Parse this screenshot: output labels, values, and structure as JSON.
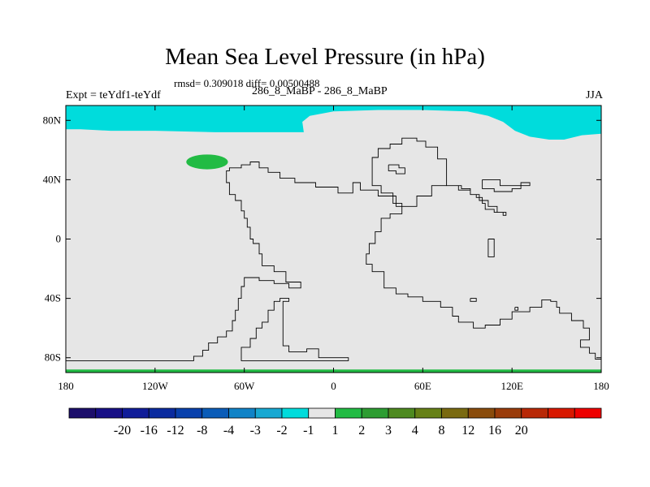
{
  "chart_data": {
    "type": "heatmap",
    "title": "Mean Sea Level Pressure (in hPa)",
    "stats_line": "rmsd= 0.309018 diff= 0.00500488",
    "left_string": "Expt = teYdf1-teYdf",
    "center_string": "286_8_MaBP - 286_8_MaBP",
    "right_string": "JJA",
    "x_range": [
      -180,
      180
    ],
    "y_range": [
      -90,
      90
    ],
    "x_ticks": [
      {
        "value": -180,
        "label": "180"
      },
      {
        "value": -120,
        "label": "120W"
      },
      {
        "value": -60,
        "label": "60W"
      },
      {
        "value": 0,
        "label": "0"
      },
      {
        "value": 60,
        "label": "60E"
      },
      {
        "value": 120,
        "label": "120E"
      },
      {
        "value": 180,
        "label": "180"
      }
    ],
    "y_ticks": [
      {
        "value": 80,
        "label": "80N"
      },
      {
        "value": 40,
        "label": "40N"
      },
      {
        "value": 0,
        "label": "0"
      },
      {
        "value": -40,
        "label": "40S"
      },
      {
        "value": -80,
        "label": "80S"
      }
    ],
    "background_bin": {
      "range": "-1 to 1",
      "color": "#e6e6e6"
    },
    "features": [
      {
        "name": "north-polar-low",
        "bin": "-2 to -1",
        "color": "#00dcdc",
        "boundary": [
          [
            -180,
            90
          ],
          [
            180,
            90
          ],
          [
            180,
            71
          ],
          [
            167,
            70
          ],
          [
            155,
            67
          ],
          [
            145,
            67
          ],
          [
            132,
            69
          ],
          [
            122,
            73
          ],
          [
            114,
            79
          ],
          [
            104,
            83
          ],
          [
            90,
            86
          ],
          [
            60,
            87
          ],
          [
            30,
            87
          ],
          [
            0,
            86
          ],
          [
            -16,
            83
          ],
          [
            -21,
            79
          ],
          [
            -20,
            72
          ],
          [
            -40,
            72
          ],
          [
            -80,
            72
          ],
          [
            -120,
            73
          ],
          [
            -150,
            73
          ],
          [
            -170,
            74
          ],
          [
            -180,
            74
          ]
        ]
      },
      {
        "name": "pacific-high",
        "bin": "1 to 2",
        "color": "#22bb44",
        "ellipse": {
          "cx": -85,
          "cy": 52,
          "rx": 14,
          "ry": 5
        }
      },
      {
        "name": "south-polar-high",
        "bin": "1 to 2",
        "color": "#22bb44",
        "boundary": [
          [
            -180,
            -88
          ],
          [
            180,
            -88
          ],
          [
            180,
            -90
          ],
          [
            -180,
            -90
          ]
        ]
      }
    ],
    "coastlines": [
      [
        [
          -180,
          -82
        ],
        [
          -94,
          -82
        ],
        [
          -94,
          -79
        ],
        [
          -88,
          -79
        ],
        [
          -88,
          -75
        ],
        [
          -84,
          -75
        ],
        [
          -84,
          -70
        ],
        [
          -78,
          -70
        ],
        [
          -78,
          -66
        ],
        [
          -72,
          -66
        ],
        [
          -72,
          -62
        ],
        [
          -68,
          -62
        ],
        [
          -68,
          -55
        ],
        [
          -66,
          -55
        ],
        [
          -66,
          -48
        ],
        [
          -64,
          -48
        ],
        [
          -64,
          -40
        ],
        [
          -62,
          -40
        ],
        [
          -62,
          -32
        ],
        [
          -60,
          -32
        ],
        [
          -60,
          -26
        ],
        [
          -50,
          -26
        ],
        [
          -50,
          -28
        ],
        [
          -40,
          -28
        ],
        [
          -40,
          -30
        ],
        [
          -30,
          -30
        ],
        [
          -30,
          -33
        ],
        [
          -22,
          -33
        ],
        [
          -22,
          -29
        ],
        [
          -32,
          -29
        ],
        [
          -32,
          -22
        ],
        [
          -40,
          -22
        ],
        [
          -40,
          -18
        ],
        [
          -48,
          -18
        ],
        [
          -48,
          -10
        ],
        [
          -50,
          -10
        ],
        [
          -50,
          -3
        ],
        [
          -54,
          -3
        ],
        [
          -54,
          0
        ],
        [
          -56,
          0
        ],
        [
          -56,
          8
        ],
        [
          -58,
          8
        ],
        [
          -58,
          14
        ],
        [
          -60,
          14
        ],
        [
          -60,
          19
        ],
        [
          -62,
          19
        ],
        [
          -62,
          26
        ],
        [
          -66,
          26
        ],
        [
          -66,
          30
        ],
        [
          -70,
          30
        ],
        [
          -70,
          38
        ],
        [
          -72,
          38
        ],
        [
          -72,
          46
        ],
        [
          -70,
          46
        ],
        [
          -70,
          48
        ],
        [
          -62,
          48
        ],
        [
          -62,
          50
        ],
        [
          -56,
          50
        ],
        [
          -56,
          52
        ],
        [
          -50,
          52
        ],
        [
          -50,
          48
        ],
        [
          -44,
          48
        ],
        [
          -44,
          45
        ],
        [
          -36,
          45
        ],
        [
          -36,
          41
        ],
        [
          -26,
          41
        ],
        [
          -26,
          38
        ],
        [
          -12,
          38
        ],
        [
          -12,
          35
        ],
        [
          3,
          35
        ],
        [
          3,
          31
        ],
        [
          13,
          31
        ],
        [
          13,
          38
        ],
        [
          18,
          38
        ],
        [
          18,
          33
        ],
        [
          30,
          33
        ],
        [
          30,
          29
        ],
        [
          42,
          29
        ],
        [
          42,
          22
        ],
        [
          56,
          22
        ],
        [
          56,
          29
        ],
        [
          66,
          29
        ],
        [
          66,
          36
        ],
        [
          76,
          36
        ],
        [
          76,
          54
        ],
        [
          70,
          54
        ],
        [
          70,
          62
        ],
        [
          62,
          62
        ],
        [
          62,
          66
        ],
        [
          56,
          66
        ],
        [
          56,
          68
        ],
        [
          46,
          68
        ],
        [
          46,
          64
        ],
        [
          38,
          64
        ],
        [
          38,
          61
        ],
        [
          30,
          61
        ],
        [
          30,
          55
        ],
        [
          26,
          55
        ],
        [
          26,
          36
        ],
        [
          32,
          36
        ],
        [
          32,
          31
        ],
        [
          40,
          31
        ],
        [
          40,
          24
        ],
        [
          46,
          24
        ],
        [
          46,
          17
        ],
        [
          38,
          17
        ],
        [
          38,
          14
        ],
        [
          32,
          14
        ],
        [
          32,
          5
        ],
        [
          28,
          5
        ],
        [
          28,
          -3
        ],
        [
          24,
          -3
        ],
        [
          24,
          -10
        ],
        [
          22,
          -10
        ],
        [
          22,
          -17
        ],
        [
          26,
          -17
        ],
        [
          26,
          -22
        ],
        [
          34,
          -22
        ],
        [
          34,
          -33
        ],
        [
          42,
          -33
        ],
        [
          42,
          -37
        ],
        [
          50,
          -37
        ],
        [
          50,
          -39
        ],
        [
          60,
          -39
        ],
        [
          60,
          -42
        ],
        [
          72,
          -42
        ],
        [
          72,
          -46
        ],
        [
          80,
          -46
        ],
        [
          80,
          -52
        ],
        [
          84,
          -52
        ],
        [
          84,
          -56
        ],
        [
          94,
          -56
        ],
        [
          94,
          -60
        ],
        [
          102,
          -60
        ],
        [
          102,
          -58
        ],
        [
          112,
          -58
        ],
        [
          112,
          -54
        ],
        [
          120,
          -54
        ],
        [
          120,
          -49
        ],
        [
          132,
          -49
        ],
        [
          132,
          -46
        ],
        [
          140,
          -46
        ],
        [
          140,
          -41
        ],
        [
          146,
          -41
        ],
        [
          146,
          -42
        ],
        [
          150,
          -42
        ],
        [
          150,
          -46
        ],
        [
          152,
          -46
        ],
        [
          152,
          -50
        ],
        [
          160,
          -50
        ],
        [
          160,
          -55
        ],
        [
          168,
          -55
        ],
        [
          168,
          -60
        ],
        [
          172,
          -60
        ],
        [
          172,
          -68
        ],
        [
          166,
          -68
        ],
        [
          166,
          -73
        ],
        [
          172,
          -73
        ],
        [
          172,
          -77
        ],
        [
          176,
          -77
        ],
        [
          176,
          -81
        ],
        [
          180,
          -81
        ]
      ],
      [
        [
          -62,
          -78
        ],
        [
          -62,
          -73
        ],
        [
          -56,
          -73
        ],
        [
          -56,
          -67
        ],
        [
          -52,
          -67
        ],
        [
          -52,
          -60
        ],
        [
          -48,
          -60
        ],
        [
          -48,
          -56
        ],
        [
          -44,
          -56
        ],
        [
          -44,
          -48
        ],
        [
          -40,
          -48
        ],
        [
          -40,
          -42
        ],
        [
          -36,
          -42
        ],
        [
          -36,
          -40
        ],
        [
          -30,
          -40
        ],
        [
          -30,
          -42
        ],
        [
          -34,
          -42
        ],
        [
          -34,
          -72
        ],
        [
          -30,
          -72
        ],
        [
          -30,
          -76
        ],
        [
          -18,
          -76
        ],
        [
          -18,
          -74
        ],
        [
          -10,
          -74
        ],
        [
          -10,
          -80
        ],
        [
          10,
          -80
        ],
        [
          10,
          -82
        ],
        [
          -62,
          -82
        ],
        [
          -62,
          -78
        ]
      ],
      [
        [
          76,
          36
        ],
        [
          84,
          36
        ],
        [
          84,
          33
        ],
        [
          92,
          33
        ],
        [
          92,
          30
        ],
        [
          96,
          30
        ],
        [
          96,
          28
        ],
        [
          100,
          28
        ],
        [
          100,
          24
        ],
        [
          102,
          24
        ],
        [
          102,
          20
        ],
        [
          108,
          20
        ],
        [
          108,
          18
        ],
        [
          114,
          18
        ],
        [
          114,
          16
        ],
        [
          116,
          16
        ],
        [
          116,
          18
        ],
        [
          110,
          18
        ],
        [
          110,
          22
        ],
        [
          104,
          22
        ],
        [
          104,
          26
        ],
        [
          98,
          26
        ],
        [
          98,
          30
        ],
        [
          92,
          30
        ],
        [
          92,
          34
        ],
        [
          86,
          34
        ],
        [
          86,
          36
        ],
        [
          76,
          36
        ]
      ],
      [
        [
          100,
          40
        ],
        [
          100,
          34
        ],
        [
          108,
          34
        ],
        [
          108,
          32
        ],
        [
          120,
          32
        ],
        [
          120,
          34
        ],
        [
          126,
          34
        ],
        [
          126,
          38
        ],
        [
          132,
          38
        ],
        [
          132,
          36
        ],
        [
          112,
          36
        ],
        [
          112,
          40
        ],
        [
          100,
          40
        ]
      ],
      [
        [
          37,
          50
        ],
        [
          37,
          46
        ],
        [
          42,
          46
        ],
        [
          42,
          44
        ],
        [
          48,
          44
        ],
        [
          48,
          48
        ],
        [
          44,
          48
        ],
        [
          44,
          50
        ],
        [
          37,
          50
        ]
      ],
      [
        [
          104,
          0
        ],
        [
          104,
          -12
        ],
        [
          108,
          -12
        ],
        [
          108,
          0
        ],
        [
          104,
          0
        ]
      ],
      [
        [
          92,
          -40
        ],
        [
          92,
          -42
        ],
        [
          96,
          -42
        ],
        [
          96,
          -40
        ],
        [
          92,
          -40
        ]
      ],
      [
        [
          122,
          -46
        ],
        [
          124,
          -46
        ],
        [
          124,
          -48
        ],
        [
          122,
          -48
        ],
        [
          122,
          -46
        ]
      ]
    ],
    "colorbar": {
      "colors": [
        "#1c0e6b",
        "#170f86",
        "#101d99",
        "#0a2b9f",
        "#0840ac",
        "#0a5cb8",
        "#1083c7",
        "#17a8d2",
        "#00dcdc",
        "#e6e6e6",
        "#22bb44",
        "#2d9d32",
        "#4e8a20",
        "#668016",
        "#7a6a10",
        "#8a4c0c",
        "#9a3c0a",
        "#b82806",
        "#d81800",
        "#ee0000"
      ],
      "labels": [
        "-20",
        "-16",
        "-12",
        "-8",
        "-4",
        "-3",
        "-2",
        "-1",
        "1",
        "2",
        "3",
        "4",
        "8",
        "12",
        "16",
        "20"
      ],
      "label_boundaries": [
        2,
        3,
        4,
        5,
        6,
        7,
        8,
        9,
        10,
        11,
        12,
        13,
        14,
        15,
        16,
        17
      ]
    }
  }
}
